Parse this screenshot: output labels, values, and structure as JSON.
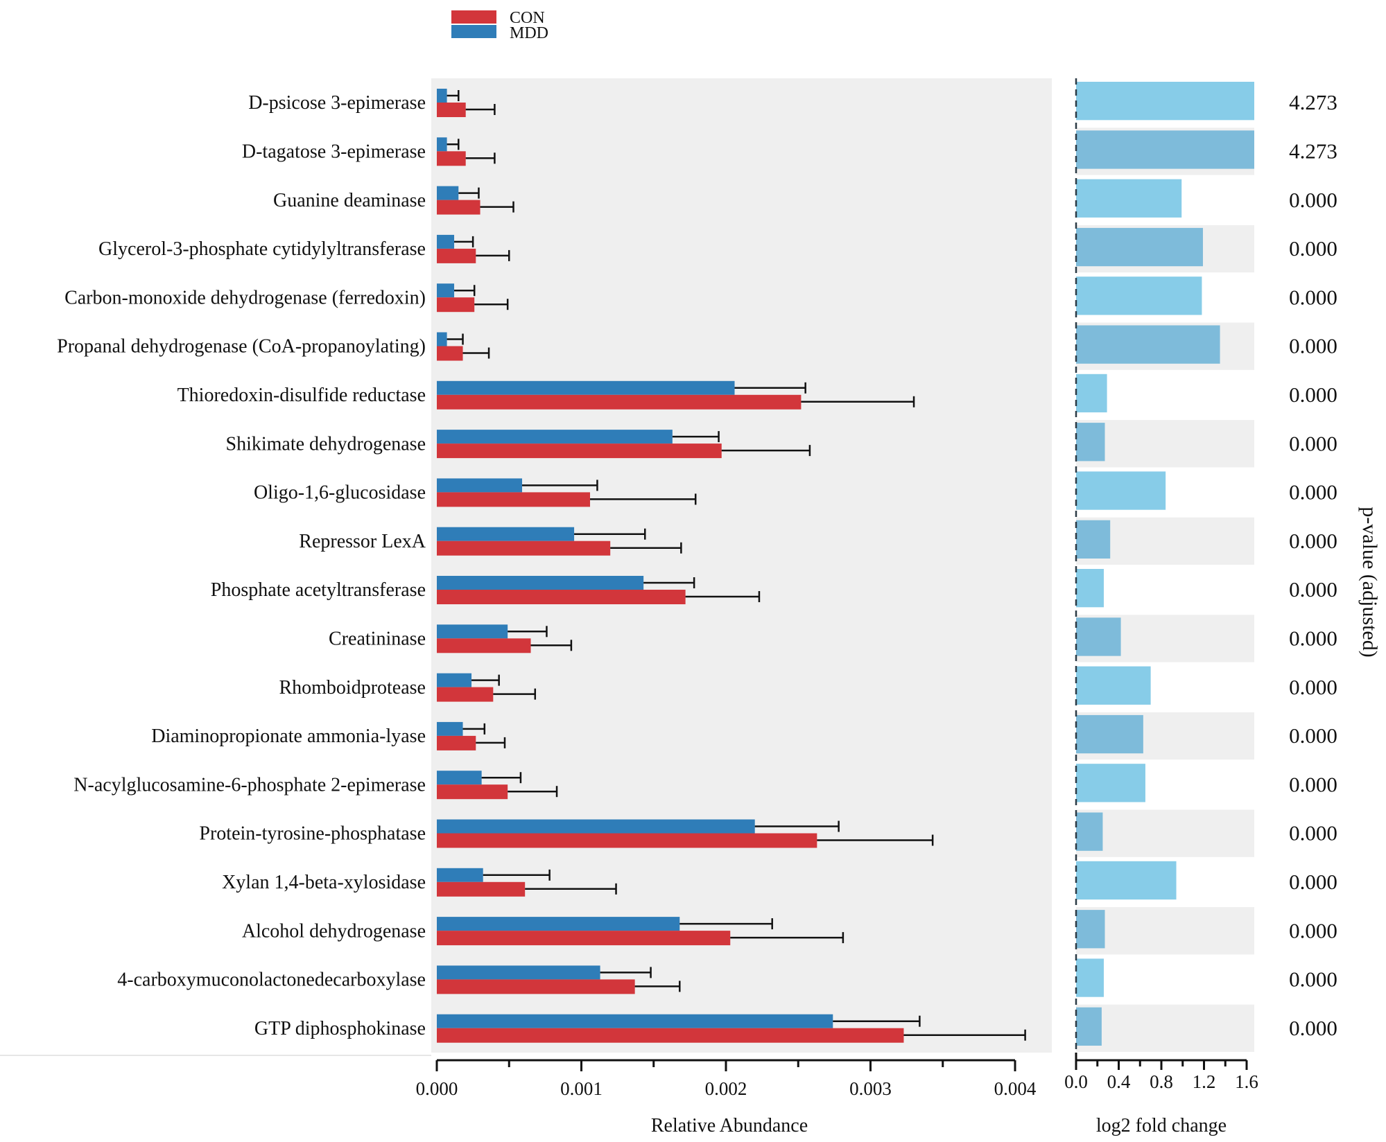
{
  "chart_data": {
    "type": "bar",
    "orientation": "horizontal",
    "title": "",
    "legend": {
      "position": "top-left",
      "entries": [
        {
          "name": "CON",
          "color": "#D2363B"
        },
        {
          "name": "MDD",
          "color": "#2F7DB8"
        }
      ]
    },
    "categories": [
      "D-psicose 3-epimerase",
      "D-tagatose 3-epimerase",
      "Guanine deaminase",
      "Glycerol-3-phosphate cytidylyltransferase",
      "Carbon-monoxide dehydrogenase (ferredoxin)",
      "Propanal dehydrogenase (CoA-propanoylating)",
      "Thioredoxin-disulfide reductase",
      "Shikimate dehydrogenase",
      "Oligo-1,6-glucosidase",
      "Repressor LexA",
      "Phosphate acetyltransferase",
      "Creatininase",
      "Rhomboidprotease",
      "Diaminopropionate ammonia-lyase",
      "N-acylglucosamine-6-phosphate 2-epimerase",
      "Protein-tyrosine-phosphatase",
      "Xylan 1,4-beta-xylosidase",
      "Alcohol dehydrogenase",
      "4-carboxymuconolactonedecarboxylase",
      "GTP diphosphokinase"
    ],
    "abundance_panel": {
      "xlabel": "Relative Abundance",
      "xlim": [
        0,
        0.004
      ],
      "xticks": [
        "0.000",
        "0.001",
        "0.002",
        "0.003",
        "0.004"
      ],
      "minor_ticks": [
        0.0005,
        0.0015,
        0.0025,
        0.0035
      ],
      "series": [
        {
          "name": "MDD",
          "color": "#2F7DB8",
          "values": [
            7e-05,
            7e-05,
            0.00015,
            0.00012,
            0.00012,
            7e-05,
            0.00206,
            0.00163,
            0.00059,
            0.00095,
            0.00143,
            0.00049,
            0.00024,
            0.00018,
            0.00031,
            0.0022,
            0.00032,
            0.00168,
            0.00113,
            0.00274
          ],
          "error_upper": [
            0.00015,
            0.00015,
            0.00029,
            0.00025,
            0.00026,
            0.00018,
            0.00255,
            0.00195,
            0.00111,
            0.00144,
            0.00178,
            0.00076,
            0.00043,
            0.00033,
            0.00058,
            0.00278,
            0.00078,
            0.00232,
            0.00148,
            0.00334
          ]
        },
        {
          "name": "CON",
          "color": "#D2363B",
          "values": [
            0.0002,
            0.0002,
            0.0003,
            0.00027,
            0.00026,
            0.00018,
            0.00252,
            0.00197,
            0.00106,
            0.0012,
            0.00172,
            0.00065,
            0.00039,
            0.00027,
            0.00049,
            0.00263,
            0.00061,
            0.00203,
            0.00137,
            0.00323
          ],
          "error_upper": [
            0.0004,
            0.0004,
            0.00053,
            0.0005,
            0.00049,
            0.00036,
            0.0033,
            0.00258,
            0.00179,
            0.00169,
            0.00223,
            0.00093,
            0.00068,
            0.00047,
            0.00083,
            0.00343,
            0.00124,
            0.00281,
            0.00168,
            0.00407
          ]
        }
      ]
    },
    "fold_change_panel": {
      "xlabel": "log2 fold change",
      "xlim": [
        0,
        1.6
      ],
      "xticks": [
        "0.0",
        "0.4",
        "0.8",
        "1.2",
        "1.6"
      ],
      "minor_ticks": [
        0.2,
        0.6,
        1.0,
        1.4
      ],
      "colors": {
        "light": "#87CCE8",
        "dark": "#7EBBDA"
      },
      "values": [
        1.68,
        1.68,
        0.99,
        1.19,
        1.18,
        1.35,
        0.29,
        0.27,
        0.84,
        0.32,
        0.26,
        0.42,
        0.7,
        0.63,
        0.65,
        0.25,
        0.94,
        0.27,
        0.26,
        0.24
      ]
    },
    "pvalue_panel": {
      "label": "p-value (adjusted)",
      "values": [
        "4.273",
        "4.273",
        "0.000",
        "0.000",
        "0.000",
        "0.000",
        "0.000",
        "0.000",
        "0.000",
        "0.000",
        "0.000",
        "0.000",
        "0.000",
        "0.000",
        "0.000",
        "0.000",
        "0.000",
        "0.000",
        "0.000",
        "0.000"
      ]
    }
  }
}
